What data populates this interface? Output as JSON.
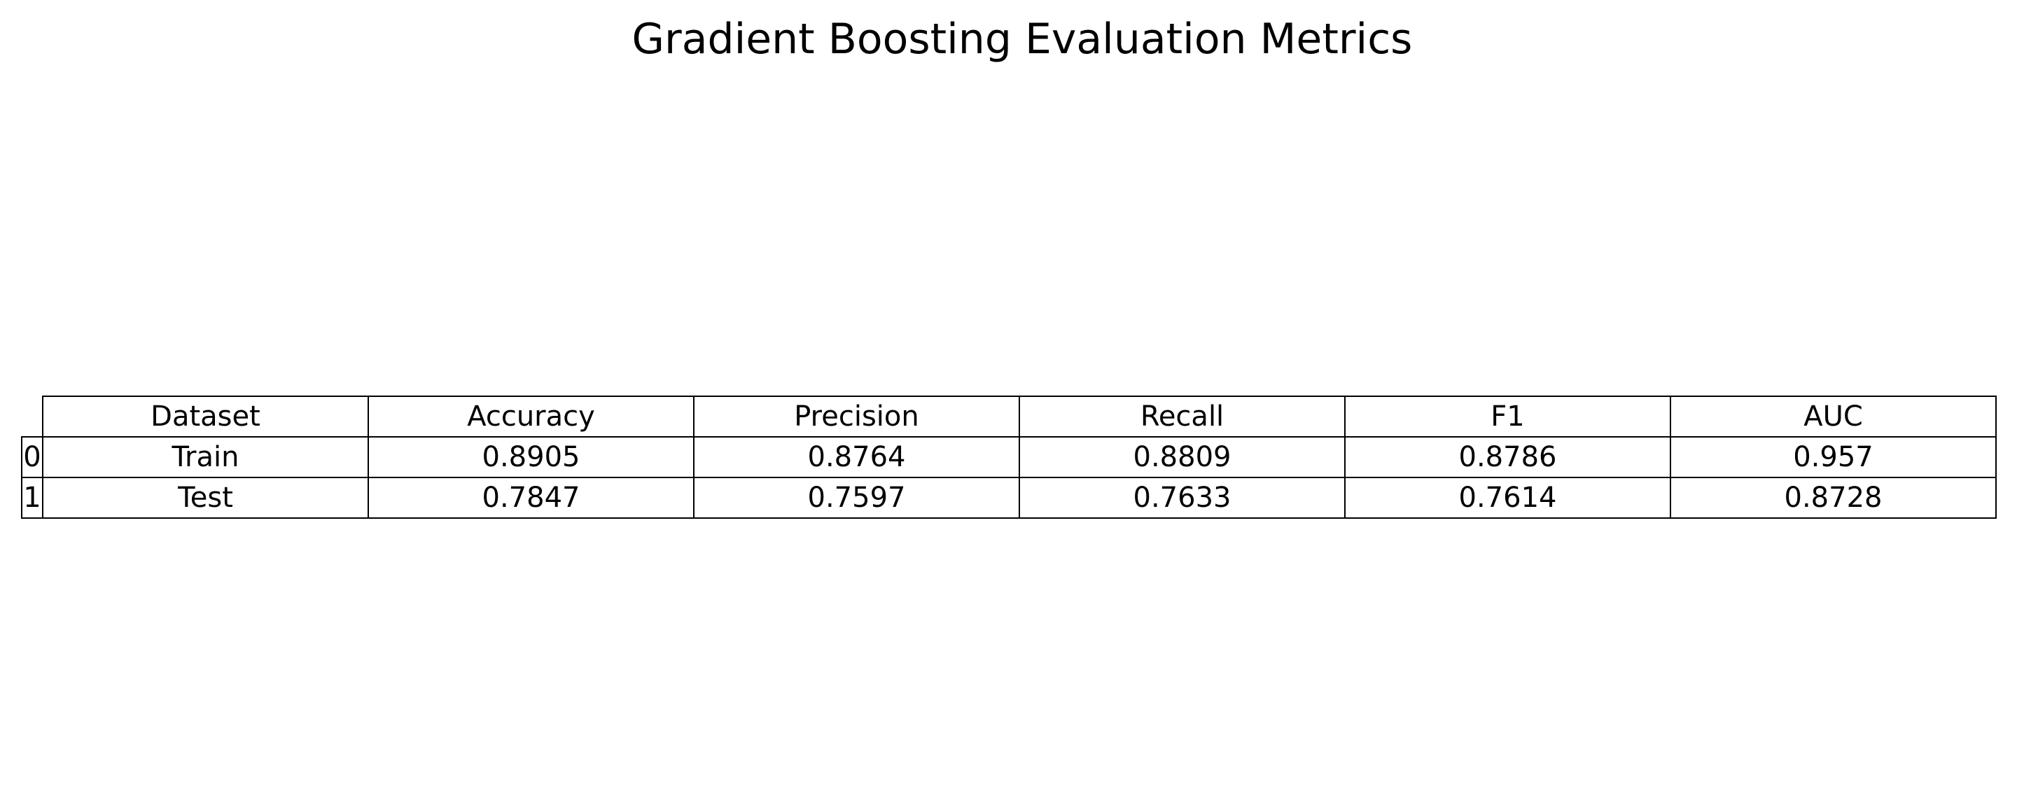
{
  "chart_data": {
    "type": "table",
    "title": "Gradient Boosting Evaluation Metrics",
    "columns": [
      "Dataset",
      "Accuracy",
      "Precision",
      "Recall",
      "F1",
      "AUC"
    ],
    "row_index": [
      "0",
      "1"
    ],
    "rows": [
      [
        "Train",
        "0.8905",
        "0.8764",
        "0.8809",
        "0.8786",
        "0.957"
      ],
      [
        "Test",
        "0.7847",
        "0.7597",
        "0.7633",
        "0.7614",
        "0.8728"
      ]
    ]
  }
}
